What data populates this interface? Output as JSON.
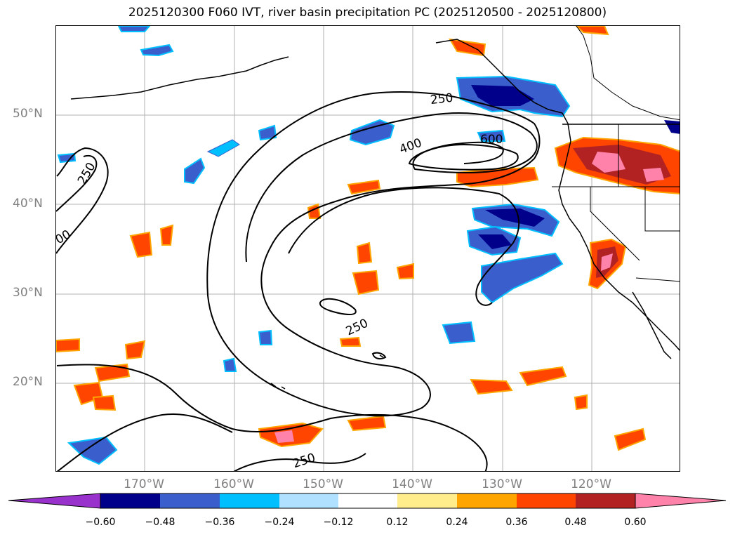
{
  "title": "2025120300 F060 IVT, river basin precipitation PC (2025120500 - 2025120800)",
  "lat_labels": [
    "50°N",
    "40°N",
    "30°N",
    "20°N"
  ],
  "lon_labels": [
    "170°W",
    "160°W",
    "150°W",
    "140°W",
    "130°W",
    "120°W"
  ],
  "colorbar": {
    "ticks": [
      "−0.60",
      "−0.48",
      "−0.36",
      "−0.24",
      "−0.12",
      "0.12",
      "0.24",
      "0.36",
      "0.48",
      "0.60"
    ],
    "colors": [
      "#9932CC",
      "#00008B",
      "#3A5FCD",
      "#00BFFF",
      "#B0E2FF",
      "#FFFFFF",
      "#FFEC8B",
      "#FFA500",
      "#FF4500",
      "#B22222",
      "#FF82AB"
    ]
  },
  "contour_labels": [
    "250",
    "400",
    "600",
    "250",
    "250",
    "250",
    "00"
  ],
  "colors": {
    "frame": "#000000",
    "grid": "#b0b0b0",
    "axis_label": "#808080"
  }
}
